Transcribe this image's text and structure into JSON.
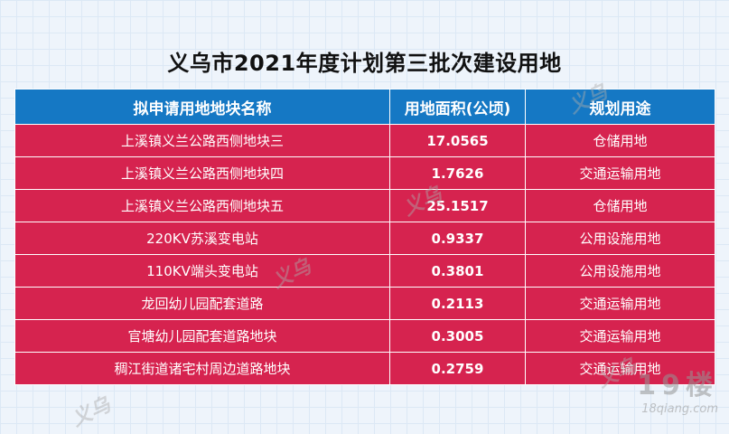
{
  "title": "义乌市2021年度计划第三批次建设用地",
  "headers": [
    "拟申请用地地块名称",
    "用地面积(公顷)",
    "规划用途"
  ],
  "rows": [
    {
      "name": "上溪镇义兰公路西侧地块三",
      "area": "17.0565",
      "use": "仓储用地"
    },
    {
      "name": "上溪镇义兰公路西侧地块四",
      "area": "1.7626",
      "use": "交通运输用地"
    },
    {
      "name": "上溪镇义兰公路西侧地块五",
      "area": "25.1517",
      "use": "仓储用地"
    },
    {
      "name": "220KV苏溪变电站",
      "area": "0.9337",
      "use": "公用设施用地"
    },
    {
      "name": "110KV端头变电站",
      "area": "0.3801",
      "use": "公用设施用地"
    },
    {
      "name": "龙回幼儿园配套道路",
      "area": "0.2113",
      "use": "交通运输用地"
    },
    {
      "name": "官塘幼儿园配套道路地块",
      "area": "0.3005",
      "use": "交通运输用地"
    },
    {
      "name": "稠江街道诸宅村周边道路地块",
      "area": "0.2759",
      "use": "交通运输用地"
    }
  ],
  "watermark": {
    "big": "19楼",
    "small": "18qiang.com"
  },
  "watermark_stamp": "义乌"
}
